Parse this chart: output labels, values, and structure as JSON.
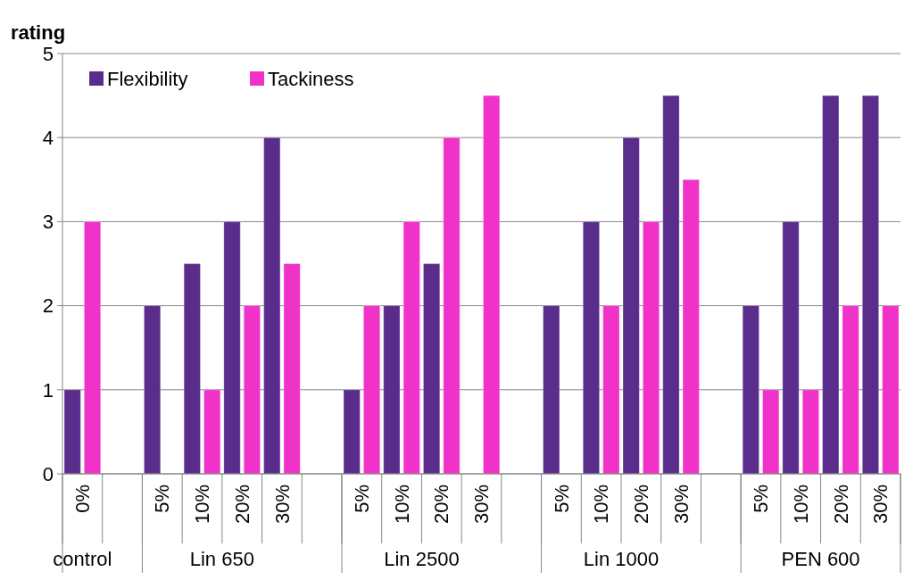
{
  "chart_data": {
    "type": "bar",
    "ylabel": "rating",
    "categories": [
      "0%",
      null,
      "5%",
      "10%",
      "20%",
      "30%",
      null,
      "5%",
      "10%",
      "20%",
      "30%",
      null,
      "5%",
      "10%",
      "20%",
      "30%",
      null,
      "5%",
      "10%",
      "20%",
      "30%"
    ],
    "series": [
      {
        "name": "Flexibility",
        "color": "#5a2d8c",
        "values": [
          1,
          null,
          2,
          2.5,
          3,
          4,
          null,
          1,
          2,
          2.5,
          null,
          null,
          2,
          3,
          4,
          4.5,
          null,
          2,
          3,
          4.5,
          4.5
        ]
      },
      {
        "name": "Tackiness",
        "color": "#f032c8",
        "values": [
          3,
          null,
          null,
          1,
          2,
          2.5,
          null,
          2,
          3,
          4,
          4.5,
          null,
          null,
          2,
          3,
          3.5,
          null,
          1,
          1,
          2,
          2
        ]
      }
    ],
    "annotations": [
      "control",
      "Lin 650",
      "Lin 2500",
      "Lin 1000",
      "PEN 600"
    ],
    "ylim": [
      0,
      5
    ],
    "yticks": [
      0,
      1,
      2,
      3,
      4,
      5
    ],
    "grid": "y",
    "legend": "top left"
  }
}
